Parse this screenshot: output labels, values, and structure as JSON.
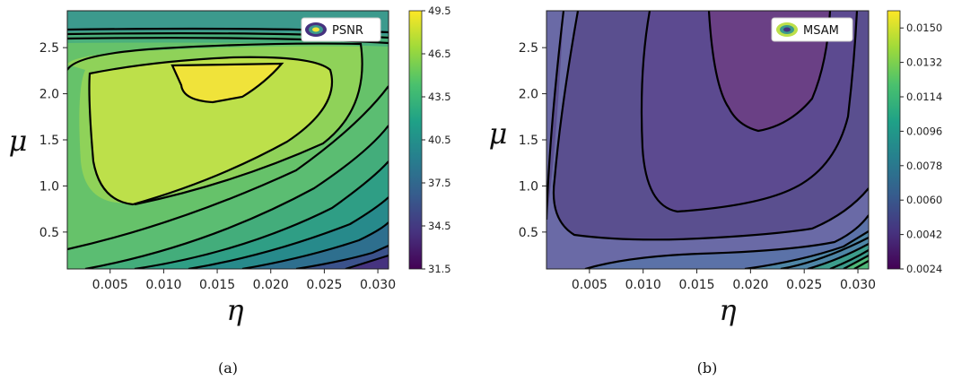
{
  "chart_data": [
    {
      "type": "contour",
      "caption": "(a)",
      "xlabel": "η",
      "ylabel": "μ",
      "legend": "PSNR",
      "legend_position": "top-right",
      "x_ticks": [
        "0.005",
        "0.010",
        "0.015",
        "0.020",
        "0.025",
        "0.030"
      ],
      "y_ticks": [
        "0.5",
        "1.0",
        "1.5",
        "2.0",
        "2.5"
      ],
      "xlim": [
        0.001,
        0.031
      ],
      "ylim": [
        0.1,
        2.9
      ],
      "colorbar_ticks": [
        "49.5",
        "46.5",
        "43.5",
        "40.5",
        "37.5",
        "34.5",
        "31.5"
      ],
      "colorbar_range": [
        31.5,
        49.5
      ],
      "peak": {
        "x": 0.016,
        "y": 2.2
      },
      "colormap": "viridis"
    },
    {
      "type": "contour",
      "caption": "(b)",
      "xlabel": "η",
      "ylabel": "μ",
      "legend": "MSAM",
      "legend_position": "top-right",
      "x_ticks": [
        "0.005",
        "0.010",
        "0.015",
        "0.020",
        "0.025",
        "0.030"
      ],
      "y_ticks": [
        "0.5",
        "1.0",
        "1.5",
        "2.0",
        "2.5"
      ],
      "xlim": [
        0.001,
        0.031
      ],
      "ylim": [
        0.1,
        2.9
      ],
      "colorbar_ticks": [
        "0.0150",
        "0.0132",
        "0.0114",
        "0.0096",
        "0.0078",
        "0.0060",
        "0.0042",
        "0.0024"
      ],
      "colorbar_range": [
        0.0024,
        0.0159
      ],
      "minimum": {
        "x": 0.021,
        "y": 2.3
      },
      "colormap": "viridis"
    }
  ]
}
